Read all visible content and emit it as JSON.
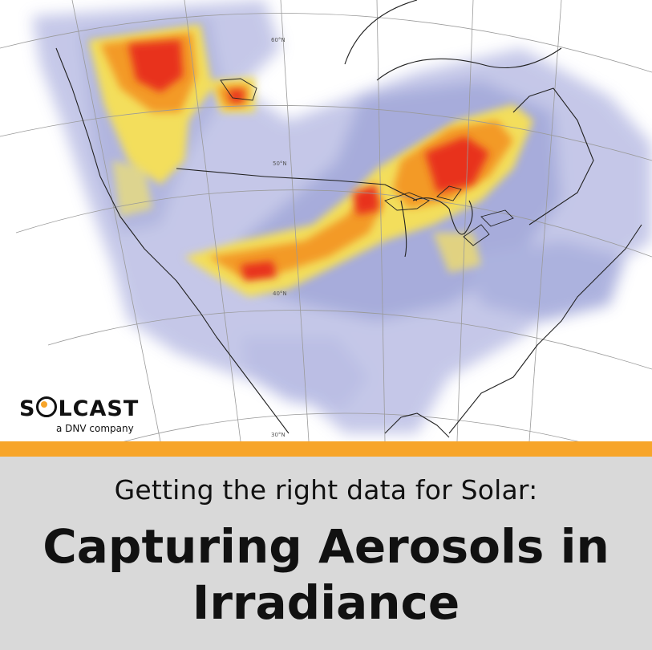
{
  "map": {
    "lat_labels": [
      "60°N",
      "50°N",
      "40°N",
      "30°N"
    ],
    "colors": {
      "low": "#b9bce3",
      "mid": "#8e94cf",
      "yellow": "#f5e15a",
      "orange": "#f39a27",
      "red": "#e8321f"
    }
  },
  "logo": {
    "brand_left": "S",
    "brand_right": "LCAST",
    "tagline": "a DNV company"
  },
  "banner": {
    "subtitle": "Getting the right data for Solar:",
    "title_line1": "Capturing Aerosols in",
    "title_line2": "Irradiance",
    "divider_color": "#f7a52a",
    "background_color": "#d9d9d9"
  }
}
